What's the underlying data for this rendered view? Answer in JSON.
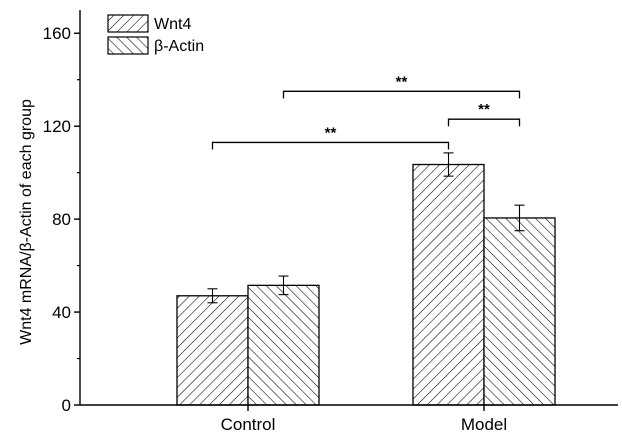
{
  "chart_data": {
    "type": "bar",
    "title": "",
    "xlabel": "",
    "ylabel": "Wnt4 mRNA/β-Actin of each group",
    "categories": [
      "Control",
      "Model"
    ],
    "ylim": [
      0,
      170
    ],
    "yticks": [
      0,
      40,
      80,
      120,
      160
    ],
    "grid": false,
    "legend_position": "top-left",
    "series": [
      {
        "name": "Wnt4",
        "values": [
          47,
          103.5
        ],
        "errors": [
          3,
          5
        ],
        "hatch": "forward-diagonal"
      },
      {
        "name": "β-Actin",
        "values": [
          51.5,
          80.5
        ],
        "errors": [
          4,
          5.5
        ],
        "hatch": "backward-diagonal"
      }
    ],
    "significance": [
      {
        "label": "**",
        "from": [
          "Control",
          0
        ],
        "to": [
          "Model",
          0
        ],
        "level": 113
      },
      {
        "label": "**",
        "from": [
          "Control",
          1
        ],
        "to": [
          "Model",
          1
        ],
        "level": 135
      },
      {
        "label": "**",
        "from": [
          "Model",
          0
        ],
        "to": [
          "Model",
          1
        ],
        "level": 123
      }
    ],
    "colors": {
      "axis": "#000000",
      "bar_fill": "#ffffff",
      "hatch": "#000000"
    }
  }
}
